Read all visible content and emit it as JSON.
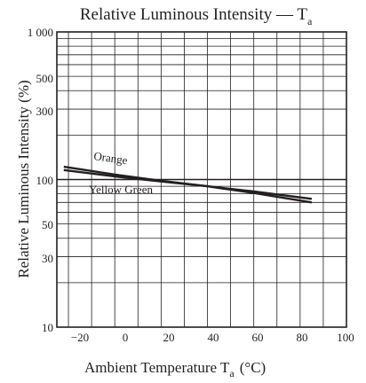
{
  "chart_data": {
    "type": "line",
    "title": {
      "main": "Relative Luminous Intensity — T",
      "sub": "a"
    },
    "xlabel": {
      "main": "Ambient Temperature  T",
      "sub": "a",
      "unit": "(°C)"
    },
    "ylabel": "Relative Luminous Intensity  (%)",
    "x_ticks": [
      "−20",
      "0",
      "20",
      "40",
      "60",
      "80",
      "100"
    ],
    "y_ticks": [
      "1 000",
      "500",
      "300",
      "100",
      "50",
      "30",
      "10"
    ],
    "xlim": [
      -25,
      100
    ],
    "ylim": [
      10,
      1000
    ],
    "y_scale": "log",
    "grid": true,
    "series": [
      {
        "name": "Orange",
        "x": [
          -22,
          0,
          20,
          40,
          60,
          85
        ],
        "y": [
          122,
          108,
          98,
          90,
          81,
          70
        ]
      },
      {
        "name": "Yellow Green",
        "x": [
          -22,
          0,
          20,
          40,
          60,
          85
        ],
        "y": [
          116,
          105,
          97,
          90,
          83,
          74
        ]
      }
    ],
    "colors": {
      "line": "#231f20",
      "grid": "#231f20"
    }
  }
}
